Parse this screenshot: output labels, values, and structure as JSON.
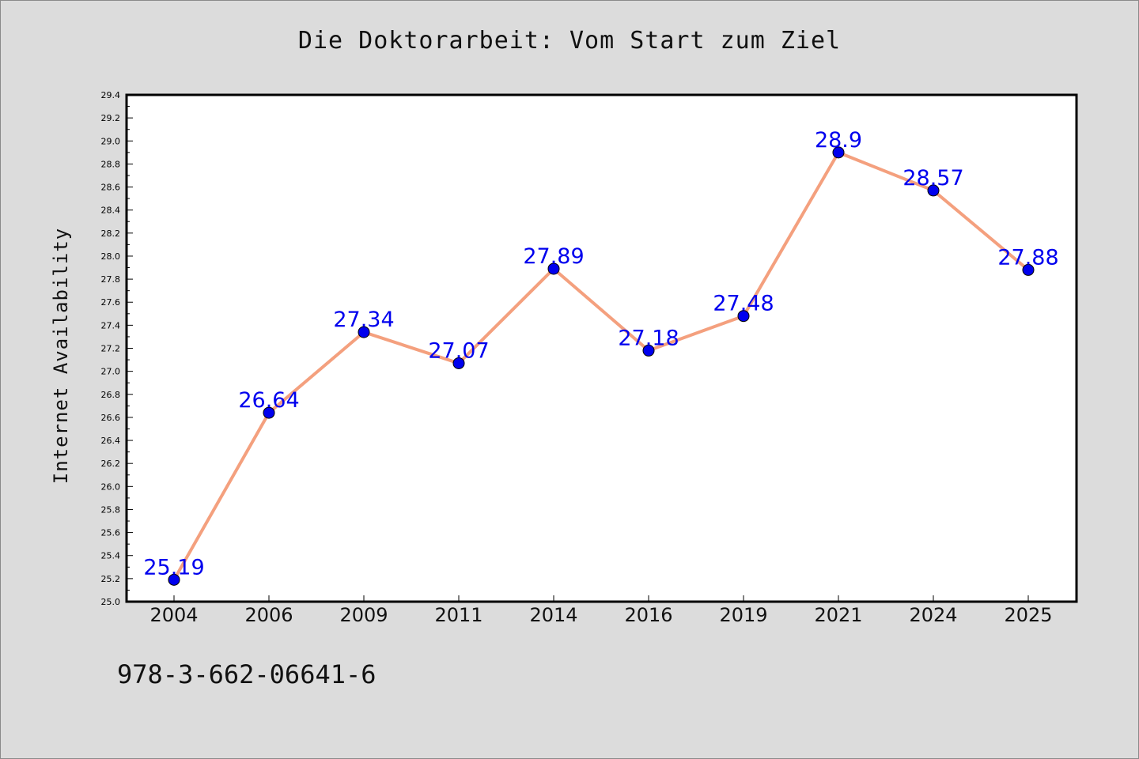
{
  "chart_data": {
    "type": "line",
    "title": "Die Doktorarbeit: Vom Start zum Ziel",
    "xlabel": "",
    "ylabel": "Internet Availability",
    "categories": [
      "2004",
      "2006",
      "2009",
      "2011",
      "2014",
      "2016",
      "2019",
      "2021",
      "2024",
      "2025"
    ],
    "series": [
      {
        "values": [
          25.19,
          26.64,
          27.34,
          27.07,
          27.89,
          27.18,
          27.48,
          28.9,
          28.57,
          27.88
        ],
        "data_labels": [
          "25.19",
          "26.64",
          "27.34",
          "27.07",
          "27.89",
          "27.18",
          "27.48",
          "28.9",
          "28.57",
          "27.88"
        ],
        "line_color": "#f4a07e",
        "marker_color": "#0000ee"
      }
    ],
    "ylim": [
      25.0,
      29.4
    ],
    "yticks": [
      "25.0",
      "25.2",
      "25.4",
      "25.6",
      "25.8",
      "26.0",
      "26.2",
      "26.4",
      "26.6",
      "26.8",
      "27.0",
      "27.2",
      "27.4",
      "27.6",
      "27.8",
      "28.0",
      "28.2",
      "28.4",
      "28.6",
      "28.8",
      "29.0",
      "29.2",
      "29.4"
    ],
    "grid": false,
    "label_color": "#0000ee"
  },
  "footer": {
    "code": "978-3-662-06641-6"
  }
}
